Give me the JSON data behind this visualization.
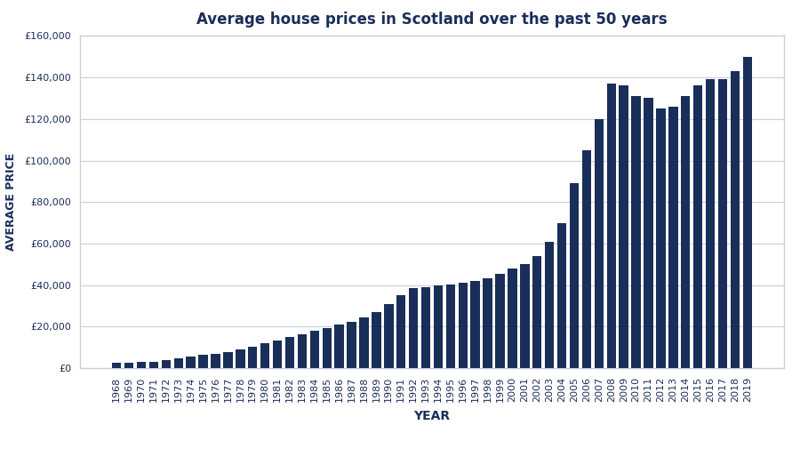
{
  "title": "Average house prices in Scotland over the past 50 years",
  "xlabel": "YEAR",
  "ylabel": "AVERAGE PRICE",
  "bar_color": "#1a2e5a",
  "background_color": "#ffffff",
  "grid_color": "#c8d0dc",
  "years": [
    1968,
    1969,
    1970,
    1971,
    1972,
    1973,
    1974,
    1975,
    1976,
    1977,
    1978,
    1979,
    1980,
    1981,
    1982,
    1983,
    1984,
    1985,
    1986,
    1987,
    1988,
    1989,
    1990,
    1991,
    1992,
    1993,
    1994,
    1995,
    1996,
    1997,
    1998,
    1999,
    2000,
    2001,
    2002,
    2003,
    2004,
    2005,
    2006,
    2007,
    2008,
    2009,
    2010,
    2011,
    2012,
    2013,
    2014,
    2015,
    2016,
    2017,
    2018,
    2019
  ],
  "values": [
    2500,
    2800,
    2900,
    3100,
    3700,
    4600,
    5500,
    6300,
    7000,
    7800,
    9000,
    10200,
    12000,
    13500,
    15000,
    16500,
    18000,
    19500,
    21000,
    22500,
    24500,
    27000,
    31000,
    35000,
    38500,
    39000,
    40000,
    40500,
    41000,
    42000,
    43500,
    45500,
    48000,
    50000,
    54000,
    61000,
    70000,
    89000,
    105000,
    120000,
    137000,
    136000,
    131000,
    130000,
    125000,
    126000,
    131000,
    136000,
    139000,
    139000,
    143000,
    150000
  ],
  "ylim": [
    0,
    160000
  ],
  "yticks": [
    0,
    20000,
    40000,
    60000,
    80000,
    100000,
    120000,
    140000,
    160000
  ],
  "border_color": "#c8d0dc",
  "title_fontsize": 12,
  "axis_label_fontsize": 9,
  "tick_fontsize": 8,
  "xlabel_fontsize": 10
}
